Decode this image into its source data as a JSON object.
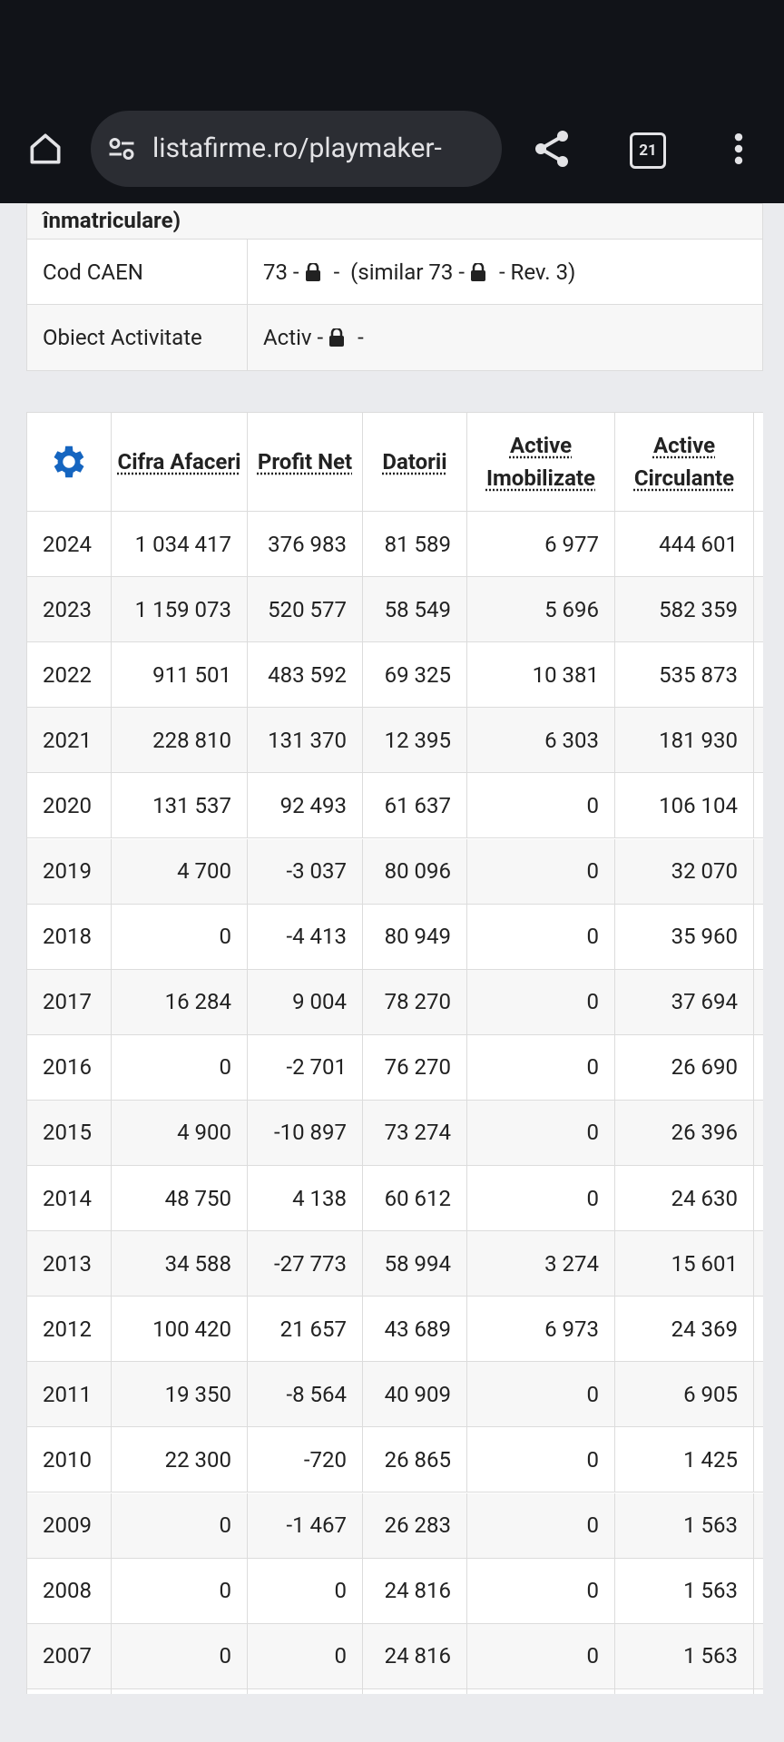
{
  "browser": {
    "url": "listafirme.ro/playmaker-",
    "tabs": "21"
  },
  "info_table": {
    "partial_row": "înmatriculare)",
    "rows": [
      {
        "label": "Cod CAEN",
        "parts": [
          "73 -",
          "-  (similar 73 -",
          "- Rev. 3)"
        ]
      },
      {
        "label": "Obiect Activitate",
        "parts": [
          "Activ -",
          "-"
        ]
      }
    ]
  },
  "fin_table": {
    "headers": [
      "Cifra Afaceri",
      "Profit Net",
      "Datorii",
      "Active Imobilizate",
      "Active Circulante"
    ],
    "rows": [
      [
        "2024",
        "1 034 417",
        "376 983",
        "81 589",
        "6 977",
        "444 601"
      ],
      [
        "2023",
        "1 159 073",
        "520 577",
        "58 549",
        "5 696",
        "582 359"
      ],
      [
        "2022",
        "911 501",
        "483 592",
        "69 325",
        "10 381",
        "535 873"
      ],
      [
        "2021",
        "228 810",
        "131 370",
        "12 395",
        "6 303",
        "181 930"
      ],
      [
        "2020",
        "131 537",
        "92 493",
        "61 637",
        "0",
        "106 104"
      ],
      [
        "2019",
        "4 700",
        "-3 037",
        "80 096",
        "0",
        "32 070"
      ],
      [
        "2018",
        "0",
        "-4 413",
        "80 949",
        "0",
        "35 960"
      ],
      [
        "2017",
        "16 284",
        "9 004",
        "78 270",
        "0",
        "37 694"
      ],
      [
        "2016",
        "0",
        "-2 701",
        "76 270",
        "0",
        "26 690"
      ],
      [
        "2015",
        "4 900",
        "-10 897",
        "73 274",
        "0",
        "26 396"
      ],
      [
        "2014",
        "48 750",
        "4 138",
        "60 612",
        "0",
        "24 630"
      ],
      [
        "2013",
        "34 588",
        "-27 773",
        "58 994",
        "3 274",
        "15 601"
      ],
      [
        "2012",
        "100 420",
        "21 657",
        "43 689",
        "6 973",
        "24 369"
      ],
      [
        "2011",
        "19 350",
        "-8 564",
        "40 909",
        "0",
        "6 905"
      ],
      [
        "2010",
        "22 300",
        "-720",
        "26 865",
        "0",
        "1 425"
      ],
      [
        "2009",
        "0",
        "-1 467",
        "26 283",
        "0",
        "1 563"
      ],
      [
        "2008",
        "0",
        "0",
        "24 816",
        "0",
        "1 563"
      ],
      [
        "2007",
        "0",
        "0",
        "24 816",
        "0",
        "1 563"
      ]
    ]
  }
}
